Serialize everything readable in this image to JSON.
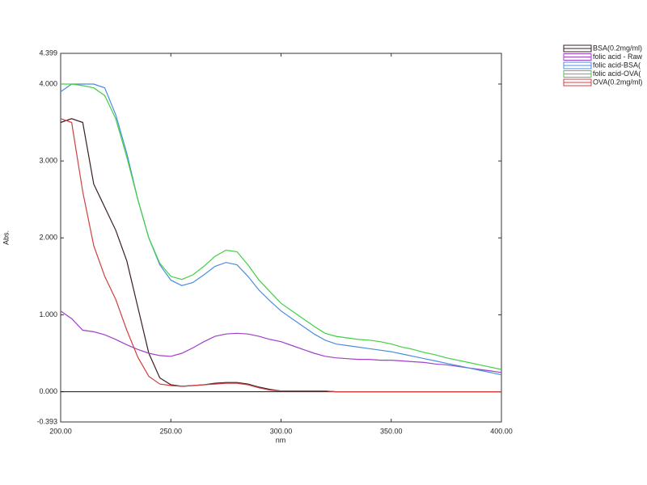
{
  "chart_data": {
    "type": "line",
    "x_label": "nm",
    "y_label": "Abs.",
    "x": [
      200,
      205,
      210,
      215,
      220,
      225,
      230,
      235,
      240,
      245,
      250,
      255,
      260,
      265,
      270,
      275,
      280,
      285,
      290,
      295,
      300,
      305,
      310,
      315,
      320,
      325,
      330,
      335,
      340,
      345,
      350,
      355,
      360,
      365,
      370,
      375,
      380,
      385,
      390,
      395,
      400
    ],
    "xlim": [
      200,
      400
    ],
    "xticks": [
      {
        "value": 200,
        "label": "200.00"
      },
      {
        "value": 250,
        "label": "250.00"
      },
      {
        "value": 300,
        "label": "300.00"
      },
      {
        "value": 350,
        "label": "350.00"
      },
      {
        "value": 400,
        "label": "400.00"
      }
    ],
    "ylim": [
      -0.393,
      4.399
    ],
    "yticks": [
      {
        "value": -0.393,
        "label": "-0.393"
      },
      {
        "value": 0,
        "label": "0.000"
      },
      {
        "value": 1,
        "label": "1.000"
      },
      {
        "value": 2,
        "label": "2.000"
      },
      {
        "value": 3,
        "label": "3.000"
      },
      {
        "value": 4,
        "label": "4.000"
      },
      {
        "value": 4.399,
        "label": "4.399"
      }
    ],
    "series": [
      {
        "name": "BSA(0.2mg/ml)",
        "color": "#3a1f1f",
        "values": [
          3.5,
          3.55,
          3.5,
          2.7,
          2.4,
          2.1,
          1.7,
          1.1,
          0.5,
          0.18,
          0.09,
          0.07,
          0.08,
          0.09,
          0.11,
          0.12,
          0.12,
          0.1,
          0.06,
          0.03,
          0.01,
          0.01,
          0.01,
          0.01,
          0.01,
          0,
          0,
          0,
          0,
          0,
          0,
          0,
          0,
          0,
          0,
          0,
          0,
          0,
          0,
          0,
          0
        ]
      },
      {
        "name": "folic acid - Raw",
        "color": "#a040c8",
        "values": [
          1.05,
          0.95,
          0.8,
          0.78,
          0.74,
          0.68,
          0.61,
          0.55,
          0.5,
          0.47,
          0.46,
          0.5,
          0.57,
          0.65,
          0.72,
          0.75,
          0.76,
          0.75,
          0.72,
          0.68,
          0.65,
          0.6,
          0.55,
          0.5,
          0.46,
          0.44,
          0.43,
          0.42,
          0.42,
          0.41,
          0.41,
          0.4,
          0.39,
          0.38,
          0.36,
          0.35,
          0.33,
          0.31,
          0.29,
          0.27,
          0.25
        ]
      },
      {
        "name": "folic acid-BSA(",
        "color": "#4a8ee0",
        "values": [
          3.9,
          4.0,
          4.0,
          4.0,
          3.95,
          3.6,
          3.1,
          2.5,
          2.0,
          1.65,
          1.45,
          1.38,
          1.42,
          1.52,
          1.63,
          1.68,
          1.65,
          1.5,
          1.32,
          1.18,
          1.05,
          0.95,
          0.85,
          0.75,
          0.67,
          0.62,
          0.6,
          0.58,
          0.56,
          0.54,
          0.52,
          0.49,
          0.46,
          0.43,
          0.4,
          0.37,
          0.34,
          0.31,
          0.28,
          0.25,
          0.22
        ]
      },
      {
        "name": "folic acid-OVA(",
        "color": "#40d040",
        "values": [
          4.0,
          4.0,
          3.98,
          3.95,
          3.85,
          3.55,
          3.05,
          2.5,
          2.0,
          1.67,
          1.5,
          1.46,
          1.52,
          1.63,
          1.76,
          1.84,
          1.82,
          1.65,
          1.45,
          1.3,
          1.15,
          1.05,
          0.95,
          0.85,
          0.76,
          0.72,
          0.7,
          0.68,
          0.67,
          0.65,
          0.62,
          0.58,
          0.55,
          0.51,
          0.48,
          0.44,
          0.41,
          0.38,
          0.35,
          0.32,
          0.29
        ]
      },
      {
        "name": "OVA(0.2mg/ml)",
        "color": "#d04040",
        "values": [
          3.55,
          3.5,
          2.6,
          1.9,
          1.5,
          1.2,
          0.8,
          0.45,
          0.2,
          0.1,
          0.08,
          0.07,
          0.08,
          0.09,
          0.1,
          0.11,
          0.11,
          0.09,
          0.05,
          0.02,
          0.01,
          0.01,
          0.01,
          0.01,
          0.01,
          0,
          0,
          0,
          0,
          0,
          0,
          0,
          0,
          0,
          0,
          0,
          0,
          0,
          0,
          0,
          0
        ]
      }
    ]
  }
}
